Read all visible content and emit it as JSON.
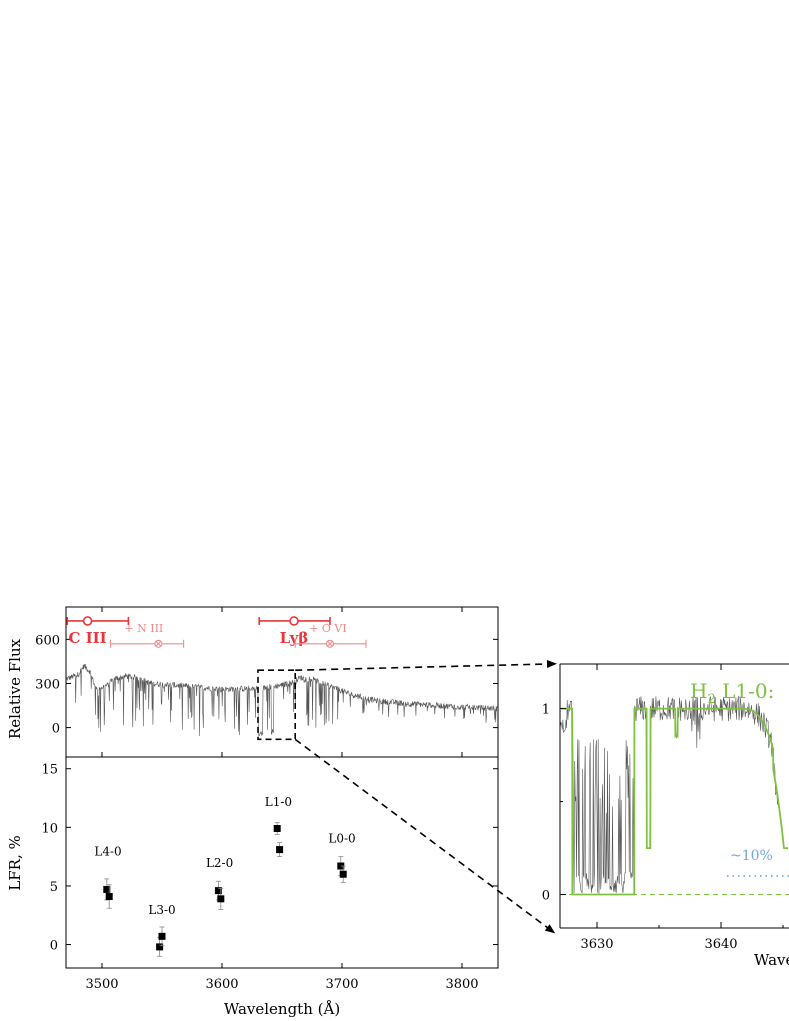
{
  "chart_data": [
    {
      "type": "line",
      "panel": "top-left",
      "ylabel": "Relative Flux",
      "xlim": [
        3470,
        3830
      ],
      "ylim": [
        -200,
        820
      ],
      "yticks": [
        0,
        300,
        600
      ],
      "ytick_labels": [
        "0",
        "300",
        "600"
      ],
      "spectrum_profile": [
        {
          "x": 3470,
          "y": 330
        },
        {
          "x": 3480,
          "y": 360
        },
        {
          "x": 3485,
          "y": 420
        },
        {
          "x": 3490,
          "y": 380
        },
        {
          "x": 3495,
          "y": 260
        },
        {
          "x": 3505,
          "y": 290
        },
        {
          "x": 3510,
          "y": 330
        },
        {
          "x": 3520,
          "y": 350
        },
        {
          "x": 3530,
          "y": 340
        },
        {
          "x": 3540,
          "y": 300
        },
        {
          "x": 3560,
          "y": 290
        },
        {
          "x": 3580,
          "y": 275
        },
        {
          "x": 3600,
          "y": 260
        },
        {
          "x": 3620,
          "y": 265
        },
        {
          "x": 3635,
          "y": 270
        },
        {
          "x": 3650,
          "y": 290
        },
        {
          "x": 3660,
          "y": 310
        },
        {
          "x": 3665,
          "y": 340
        },
        {
          "x": 3675,
          "y": 330
        },
        {
          "x": 3690,
          "y": 280
        },
        {
          "x": 3710,
          "y": 220
        },
        {
          "x": 3730,
          "y": 180
        },
        {
          "x": 3760,
          "y": 160
        },
        {
          "x": 3800,
          "y": 140
        },
        {
          "x": 3830,
          "y": 130
        }
      ],
      "emission_lines": [
        {
          "label": "C III",
          "center": 3488,
          "range": [
            3471,
            3522
          ],
          "y": 725,
          "style": "strong"
        },
        {
          "label": "+ N III",
          "center": 3547,
          "range": [
            3507,
            3568
          ],
          "y": 570,
          "style": "weak"
        },
        {
          "label": "Lyβ",
          "center": 3660,
          "range": [
            3631,
            3690
          ],
          "y": 725,
          "style": "strong"
        },
        {
          "label": "+ O VI",
          "center": 3690,
          "range": [
            3661,
            3720
          ],
          "y": 570,
          "style": "weak"
        }
      ],
      "zoom_box": {
        "x": [
          3630,
          3661
        ],
        "y": [
          -80,
          390
        ]
      },
      "line_colors": {
        "spectrum": "#555555",
        "strong": "#e8363a",
        "weak": "#f08a8a"
      }
    },
    {
      "type": "scatter",
      "panel": "bottom-left",
      "xlabel": "Wavelength (Å)",
      "ylabel": "LFR, %",
      "xlim": [
        3470,
        3830
      ],
      "ylim": [
        -2,
        16
      ],
      "xticks": [
        3500,
        3600,
        3700,
        3800
      ],
      "xtick_labels": [
        "3500",
        "3600",
        "3700",
        "3800"
      ],
      "yticks": [
        0,
        5,
        10,
        15
      ],
      "ytick_labels": [
        "0",
        "5",
        "10",
        "15"
      ],
      "points": [
        {
          "x": 3504,
          "y": 4.7,
          "err": 0.9
        },
        {
          "x": 3506,
          "y": 4.1,
          "err": 1.0
        },
        {
          "x": 3548,
          "y": -0.2,
          "err": 0.8
        },
        {
          "x": 3550,
          "y": 0.7,
          "err": 0.8
        },
        {
          "x": 3597,
          "y": 4.6,
          "err": 0.8
        },
        {
          "x": 3599,
          "y": 3.9,
          "err": 0.9
        },
        {
          "x": 3646,
          "y": 9.9,
          "err": 0.5
        },
        {
          "x": 3648,
          "y": 8.1,
          "err": 0.6
        },
        {
          "x": 3699,
          "y": 6.7,
          "err": 0.8
        },
        {
          "x": 3701,
          "y": 6.0,
          "err": 0.7
        }
      ],
      "point_labels": [
        {
          "text": "L4-0",
          "x": 3505,
          "y": 7.6
        },
        {
          "text": "L3-0",
          "x": 3550,
          "y": 2.6
        },
        {
          "text": "L2-0",
          "x": 3598,
          "y": 6.6
        },
        {
          "text": "L1-0",
          "x": 3647,
          "y": 11.8
        },
        {
          "text": "L0-0",
          "x": 3700,
          "y": 8.7
        }
      ]
    },
    {
      "type": "line",
      "panel": "right-zoom",
      "xlabel": "Wave",
      "xlim": [
        3626.8,
        3645.3
      ],
      "ylim": [
        -0.18,
        1.24
      ],
      "xticks": [
        3630,
        3640
      ],
      "xtick_labels": [
        "3630",
        "3640"
      ],
      "yticks": [
        0,
        1
      ],
      "ytick_labels": [
        "0",
        "1"
      ],
      "model_label": "H",
      "model_label_sub": "2",
      "model_label_rest": " L1-0:",
      "annotation": "~10%",
      "annotation_level": 0.1,
      "line_colors": {
        "model": "#7fc241",
        "data": "#555555",
        "annotation": "#6fa8dc"
      }
    }
  ]
}
